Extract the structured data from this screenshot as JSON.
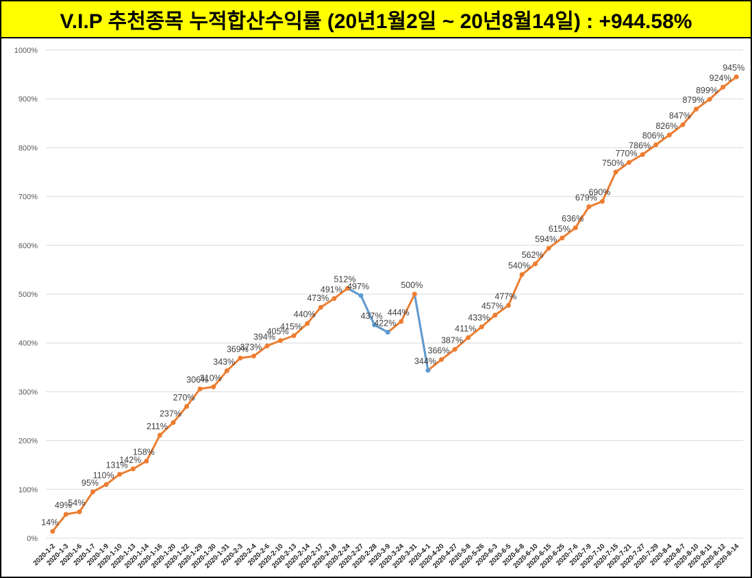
{
  "chart_data": {
    "type": "line",
    "title": "V.I.P 추천종목 누적합산수익률 (20년1월2일 ~ 20년8월14일) : +944.58%",
    "categories": [
      "2020-1-2",
      "2020-1-3",
      "2020-1-6",
      "2020-1-7",
      "2020-1-9",
      "2020-1-10",
      "2020-1-13",
      "2020-1-14",
      "2020-1-16",
      "2020-1-20",
      "2020-1-22",
      "2020-1-29",
      "2020-1-30",
      "2020-1-31",
      "2020-2-3",
      "2020-2-4",
      "2020-2-6",
      "2020-2-10",
      "2020-2-13",
      "2020-2-14",
      "2020-2-17",
      "2020-2-18",
      "2020-2-24",
      "2020-2-27",
      "2020-2-28",
      "2020-3-9",
      "2020-3-24",
      "2020-3-31",
      "2020-4-1",
      "2020-4-20",
      "2020-4-27",
      "2020-5-8",
      "2020-5-26",
      "2020-6-3",
      "2020-6-5",
      "2020-6-8",
      "2020-6-10",
      "2020-6-15",
      "2020-6-25",
      "2020-7-6",
      "2020-7-9",
      "2020-7-10",
      "2020-7-15",
      "2020-7-21",
      "2020-7-27",
      "2020-7-29",
      "2020-8-4",
      "2020-8-7",
      "2020-8-10",
      "2020-8-11",
      "2020-8-12",
      "2020-8-14"
    ],
    "values": [
      14,
      49,
      54,
      95,
      110,
      131,
      142,
      158,
      211,
      237,
      270,
      306,
      310,
      343,
      369,
      373,
      394,
      405,
      415,
      440,
      473,
      491,
      512,
      497,
      437,
      422,
      444,
      500,
      344,
      366,
      387,
      411,
      433,
      457,
      477,
      540,
      562,
      594,
      615,
      636,
      679,
      690,
      750,
      770,
      786,
      806,
      826,
      847,
      879,
      899,
      924,
      945
    ],
    "value_labels": [
      "14%",
      "49%",
      "54%",
      "95%",
      "110%",
      "131%",
      "142%",
      "158%",
      "211%",
      "237%",
      "270%",
      "306%",
      "310%",
      "343%",
      "369%",
      "373%",
      "394%",
      "405%",
      "415%",
      "440%",
      "473%",
      "491%",
      "512%",
      "497%",
      "437%",
      "422%",
      "444%",
      "500%",
      "344%",
      "366%",
      "387%",
      "411%",
      "433%",
      "457%",
      "477%",
      "540%",
      "562%",
      "594%",
      "615%",
      "636%",
      "679%",
      "690%",
      "750%",
      "770%",
      "786%",
      "806%",
      "826%",
      "847%",
      "879%",
      "899%",
      "924%",
      "945%"
    ],
    "color": "#ed7d31",
    "point_colors": [
      "#ed7d31",
      "#ed7d31",
      "#ed7d31",
      "#ed7d31",
      "#ed7d31",
      "#ed7d31",
      "#ed7d31",
      "#ed7d31",
      "#ed7d31",
      "#ed7d31",
      "#ed7d31",
      "#ed7d31",
      "#ed7d31",
      "#ed7d31",
      "#ed7d31",
      "#ed7d31",
      "#ed7d31",
      "#ed7d31",
      "#ed7d31",
      "#ed7d31",
      "#ed7d31",
      "#ed7d31",
      "#ed7d31",
      "#5b9bd5",
      "#5b9bd5",
      "#5b9bd5",
      "#ed7d31",
      "#ed7d31",
      "#5b9bd5",
      "#ed7d31",
      "#ed7d31",
      "#ed7d31",
      "#ed7d31",
      "#ed7d31",
      "#ed7d31",
      "#ed7d31",
      "#ed7d31",
      "#ed7d31",
      "#ed7d31",
      "#ed7d31",
      "#ed7d31",
      "#ed7d31",
      "#ed7d31",
      "#ed7d31",
      "#ed7d31",
      "#ed7d31",
      "#ed7d31",
      "#ed7d31",
      "#ed7d31",
      "#ed7d31",
      "#ed7d31",
      "#ed7d31"
    ],
    "ylim": [
      0,
      1000
    ],
    "yticks": [
      {
        "value": 0,
        "label": "0%"
      },
      {
        "value": 100,
        "label": "100%"
      },
      {
        "value": 200,
        "label": "200%"
      },
      {
        "value": 300,
        "label": "300%"
      },
      {
        "value": 400,
        "label": "400%"
      },
      {
        "value": 500,
        "label": "500%"
      },
      {
        "value": 600,
        "label": "600%"
      },
      {
        "value": 700,
        "label": "700%"
      },
      {
        "value": 800,
        "label": "800%"
      },
      {
        "value": 900,
        "label": "900%"
      },
      {
        "value": 1000,
        "label": "1000%"
      }
    ],
    "grid": true
  }
}
